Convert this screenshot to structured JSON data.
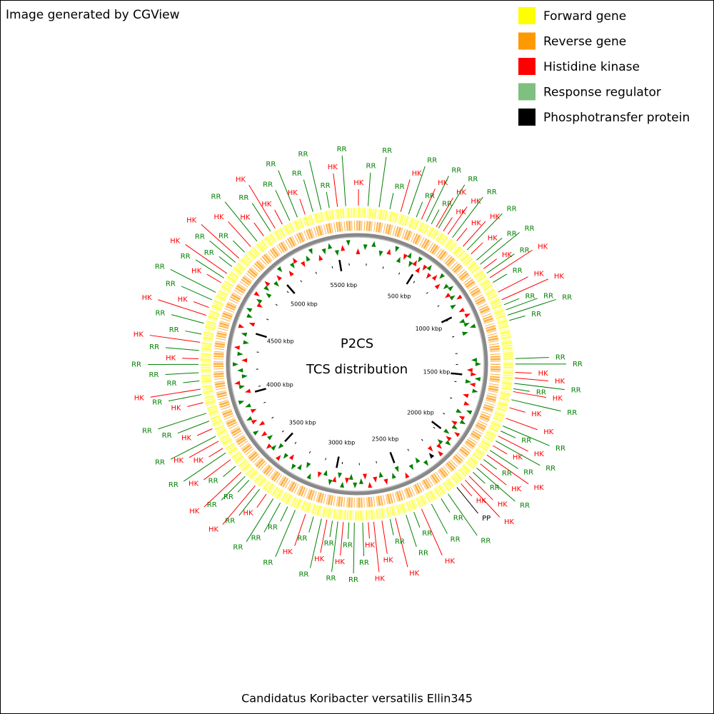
{
  "header": {
    "credit": "Image generated by CGView"
  },
  "legend": [
    {
      "name": "Forward gene",
      "color": "#ffff00"
    },
    {
      "name": "Reverse gene",
      "color": "#ff9900"
    },
    {
      "name": "Histidine kinase",
      "color": "#ff0000"
    },
    {
      "name": "Response regulator",
      "color": "#7fbf7f"
    },
    {
      "name": "Phosphotransfer protein",
      "color": "#000000"
    }
  ],
  "map": {
    "title": "P2CS",
    "subtitle": "TCS distribution",
    "xlim": [
      0,
      5650
    ],
    "ticks": [
      {
        "value": 500,
        "label": "500 kbp"
      },
      {
        "value": 1000,
        "label": "1000 kbp"
      },
      {
        "value": 1500,
        "label": "1500 kbp"
      },
      {
        "value": 2000,
        "label": "2000 kbp"
      },
      {
        "value": 2500,
        "label": "2500 kbp"
      },
      {
        "value": 3000,
        "label": "3000 kbp"
      },
      {
        "value": 3500,
        "label": "3500 kbp"
      },
      {
        "value": 4000,
        "label": "4000 kbp"
      },
      {
        "value": 4500,
        "label": "4500 kbp"
      },
      {
        "value": 5000,
        "label": "5000 kbp"
      },
      {
        "value": 5500,
        "label": "5500 kbp"
      }
    ],
    "label_colors": {
      "HK": "#ff0000",
      "RR": "#008000",
      "PP": "#000000"
    },
    "features": [
      {
        "label": "HK",
        "kbp": 8
      },
      {
        "label": "RR",
        "kbp": 63
      },
      {
        "label": "RR",
        "kbp": 126
      },
      {
        "label": "RR",
        "kbp": 188
      },
      {
        "label": "HK",
        "kbp": 251
      },
      {
        "label": "RR",
        "kbp": 298
      },
      {
        "label": "RR",
        "kbp": 345
      },
      {
        "label": "HK",
        "kbp": 377
      },
      {
        "label": "RR",
        "kbp": 408
      },
      {
        "label": "RR",
        "kbp": 439
      },
      {
        "label": "HK",
        "kbp": 471
      },
      {
        "label": "RR",
        "kbp": 486
      },
      {
        "label": "HK",
        "kbp": 518
      },
      {
        "label": "HK",
        "kbp": 549
      },
      {
        "label": "RR",
        "kbp": 581
      },
      {
        "label": "HK",
        "kbp": 612
      },
      {
        "label": "HK",
        "kbp": 659
      },
      {
        "label": "RR",
        "kbp": 690
      },
      {
        "label": "HK",
        "kbp": 722
      },
      {
        "label": "RR",
        "kbp": 769
      },
      {
        "label": "RR",
        "kbp": 800
      },
      {
        "label": "HK",
        "kbp": 832
      },
      {
        "label": "RR",
        "kbp": 863
      },
      {
        "label": "HK",
        "kbp": 894
      },
      {
        "label": "RR",
        "kbp": 926
      },
      {
        "label": "HK",
        "kbp": 988
      },
      {
        "label": "HK",
        "kbp": 1036
      },
      {
        "label": "RR",
        "kbp": 1067
      },
      {
        "label": "RR",
        "kbp": 1098
      },
      {
        "label": "RR",
        "kbp": 1130
      },
      {
        "label": "RR",
        "kbp": 1161
      },
      {
        "label": "RR",
        "kbp": 1381
      },
      {
        "label": "RR",
        "kbp": 1412
      },
      {
        "label": "HK",
        "kbp": 1459
      },
      {
        "label": "HK",
        "kbp": 1491
      },
      {
        "label": "RR",
        "kbp": 1522
      },
      {
        "label": "RR",
        "kbp": 1553
      },
      {
        "label": "HK",
        "kbp": 1569
      },
      {
        "label": "RR",
        "kbp": 1616
      },
      {
        "label": "HK",
        "kbp": 1663
      },
      {
        "label": "HK",
        "kbp": 1726
      },
      {
        "label": "RR",
        "kbp": 1773
      },
      {
        "label": "RR",
        "kbp": 1804
      },
      {
        "label": "HK",
        "kbp": 1836
      },
      {
        "label": "RR",
        "kbp": 1867
      },
      {
        "label": "HK",
        "kbp": 1898
      },
      {
        "label": "RR",
        "kbp": 1930
      },
      {
        "label": "HK",
        "kbp": 1961
      },
      {
        "label": "RR",
        "kbp": 1993
      },
      {
        "label": "HK",
        "kbp": 2024
      },
      {
        "label": "RR",
        "kbp": 2055
      },
      {
        "label": "RR",
        "kbp": 2087
      },
      {
        "label": "HK",
        "kbp": 2118
      },
      {
        "label": "HK",
        "kbp": 2150
      },
      {
        "label": "HK",
        "kbp": 2181
      },
      {
        "label": "PP",
        "kbp": 2212
      },
      {
        "label": "RR",
        "kbp": 2275
      },
      {
        "label": "RR",
        "kbp": 2322
      },
      {
        "label": "RR",
        "kbp": 2385
      },
      {
        "label": "HK",
        "kbp": 2448
      },
      {
        "label": "RR",
        "kbp": 2495
      },
      {
        "label": "RR",
        "kbp": 2542
      },
      {
        "label": "HK",
        "kbp": 2605
      },
      {
        "label": "RR",
        "kbp": 2636
      },
      {
        "label": "HK",
        "kbp": 2683
      },
      {
        "label": "HK",
        "kbp": 2730
      },
      {
        "label": "HK",
        "kbp": 2761
      },
      {
        "label": "RR",
        "kbp": 2793
      },
      {
        "label": "RR",
        "kbp": 2840
      },
      {
        "label": "RR",
        "kbp": 2871
      },
      {
        "label": "HK",
        "kbp": 2903
      },
      {
        "label": "RR",
        "kbp": 2934
      },
      {
        "label": "RR",
        "kbp": 2965
      },
      {
        "label": "HK",
        "kbp": 2997
      },
      {
        "label": "RR",
        "kbp": 3028
      },
      {
        "label": "RR",
        "kbp": 3075
      },
      {
        "label": "HK",
        "kbp": 3122
      },
      {
        "label": "RR",
        "kbp": 3185
      },
      {
        "label": "RR",
        "kbp": 3232
      },
      {
        "label": "RR",
        "kbp": 3279
      },
      {
        "label": "RR",
        "kbp": 3326
      },
      {
        "label": "HK",
        "kbp": 3373
      },
      {
        "label": "RR",
        "kbp": 3420
      },
      {
        "label": "HK",
        "kbp": 3452
      },
      {
        "label": "RR",
        "kbp": 3499
      },
      {
        "label": "RR",
        "kbp": 3530
      },
      {
        "label": "HK",
        "kbp": 3562
      },
      {
        "label": "RR",
        "kbp": 3609
      },
      {
        "label": "HK",
        "kbp": 3656
      },
      {
        "label": "RR",
        "kbp": 3703
      },
      {
        "label": "HK",
        "kbp": 3734
      },
      {
        "label": "HK",
        "kbp": 3781
      },
      {
        "label": "RR",
        "kbp": 3813
      },
      {
        "label": "HK",
        "kbp": 3860
      },
      {
        "label": "RR",
        "kbp": 3907
      },
      {
        "label": "RR",
        "kbp": 3954
      },
      {
        "label": "HK",
        "kbp": 4017
      },
      {
        "label": "RR",
        "kbp": 4064
      },
      {
        "label": "HK",
        "kbp": 4095
      },
      {
        "label": "RR",
        "kbp": 4142
      },
      {
        "label": "RR",
        "kbp": 4189
      },
      {
        "label": "RR",
        "kbp": 4236
      },
      {
        "label": "HK",
        "kbp": 4268
      },
      {
        "label": "RR",
        "kbp": 4315
      },
      {
        "label": "HK",
        "kbp": 4362
      },
      {
        "label": "RR",
        "kbp": 4409
      },
      {
        "label": "RR",
        "kbp": 4472
      },
      {
        "label": "HK",
        "kbp": 4519
      },
      {
        "label": "HK",
        "kbp": 4566
      },
      {
        "label": "RR",
        "kbp": 4613
      },
      {
        "label": "RR",
        "kbp": 4660
      },
      {
        "label": "HK",
        "kbp": 4723
      },
      {
        "label": "RR",
        "kbp": 4754
      },
      {
        "label": "HK",
        "kbp": 4785
      },
      {
        "label": "RR",
        "kbp": 4833
      },
      {
        "label": "RR",
        "kbp": 4864
      },
      {
        "label": "HK",
        "kbp": 4895
      },
      {
        "label": "RR",
        "kbp": 4942
      },
      {
        "label": "HK",
        "kbp": 4989
      },
      {
        "label": "RR",
        "kbp": 5036
      },
      {
        "label": "HK",
        "kbp": 5084
      },
      {
        "label": "RR",
        "kbp": 5131
      },
      {
        "label": "HK",
        "kbp": 5162
      },
      {
        "label": "HK",
        "kbp": 5209
      },
      {
        "label": "RR",
        "kbp": 5256
      },
      {
        "label": "RR",
        "kbp": 5303
      },
      {
        "label": "HK",
        "kbp": 5350
      },
      {
        "label": "RR",
        "kbp": 5397
      },
      {
        "label": "RR",
        "kbp": 5444
      },
      {
        "label": "RR",
        "kbp": 5492
      },
      {
        "label": "HK",
        "kbp": 5539
      },
      {
        "label": "RR",
        "kbp": 5586
      }
    ]
  },
  "footer": {
    "organism": "Candidatus Koribacter versatilis Ellin345"
  }
}
